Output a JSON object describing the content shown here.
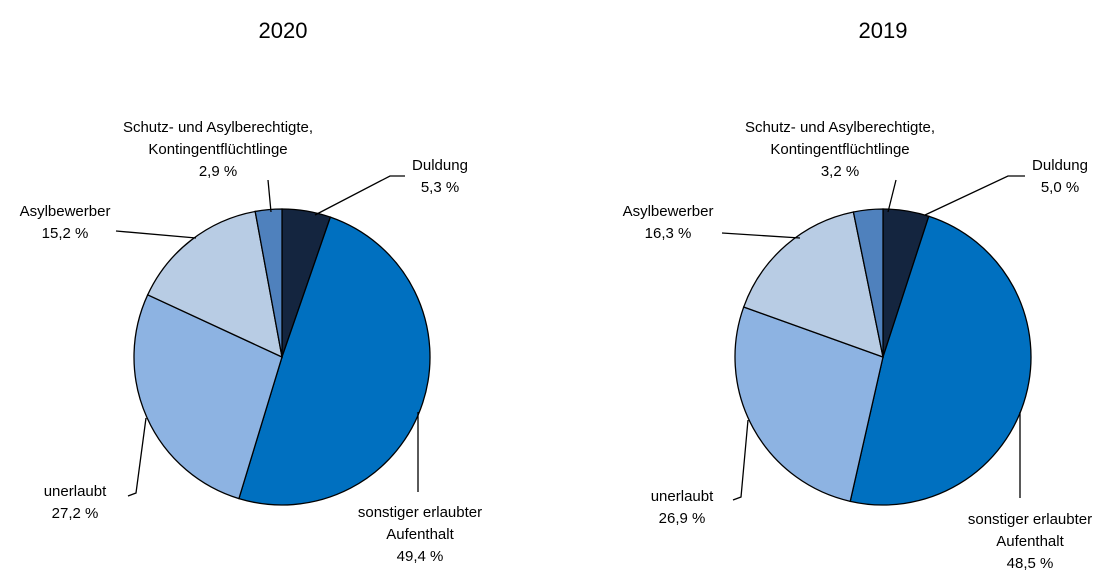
{
  "chart_data": [
    {
      "type": "pie",
      "title": "2020",
      "categories": [
        [
          "Duldung"
        ],
        [
          "sonstiger erlaubter",
          "Aufenthalt"
        ],
        [
          "unerlaubt"
        ],
        [
          "Asylbewerber"
        ],
        [
          "Schutz- und Asylberechtigte,",
          "Kontingentflüchtlinge"
        ]
      ],
      "values": [
        5.3,
        49.4,
        27.2,
        15.2,
        2.9
      ],
      "value_labels": [
        "5,3 %",
        "49,4 %",
        "27,2 %",
        "15,2 %",
        "2,9 %"
      ],
      "colors": [
        "#14253f",
        "#0070c0",
        "#8db3e2",
        "#b8cce4",
        "#4f81bd"
      ]
    },
    {
      "type": "pie",
      "title": "2019",
      "categories": [
        [
          "Duldung"
        ],
        [
          "sonstiger erlaubter",
          "Aufenthalt"
        ],
        [
          "unerlaubt"
        ],
        [
          "Asylbewerber"
        ],
        [
          "Schutz- und Asylberechtigte,",
          "Kontingentflüchtlinge"
        ]
      ],
      "values": [
        5.0,
        48.5,
        26.9,
        16.3,
        3.2
      ],
      "value_labels": [
        "5,0 %",
        "48,5 %",
        "26,9 %",
        "16,3 %",
        "3,2 %"
      ],
      "colors": [
        "#14253f",
        "#0070c0",
        "#8db3e2",
        "#b8cce4",
        "#4f81bd"
      ]
    }
  ]
}
